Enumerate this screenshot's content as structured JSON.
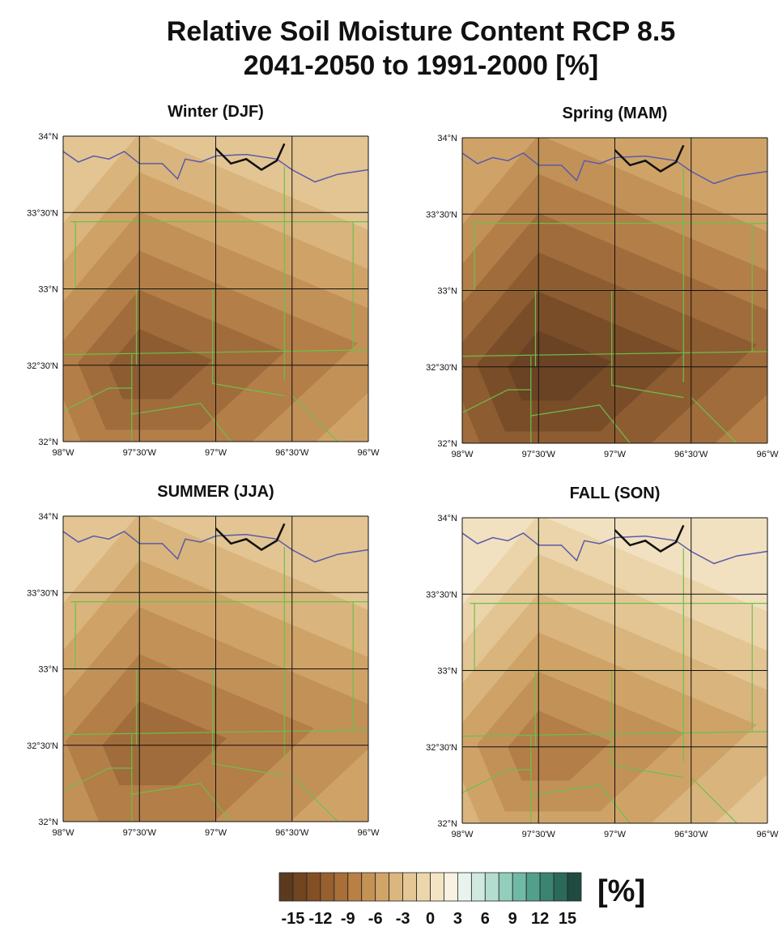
{
  "title_lines": [
    "Relative Soil Moisture Content RCP 8.5",
    "2041-2050 to 1991-2000 [%]"
  ],
  "panels": [
    {
      "title": "Winter (DJF)"
    },
    {
      "title": "Spring (MAM)"
    },
    {
      "title": "SUMMER (JJA)"
    },
    {
      "title": "FALL (SON)"
    }
  ],
  "lat_labels": [
    "34°N",
    "33°30'N",
    "33°N",
    "32°30'N",
    "32°N"
  ],
  "lon_labels": [
    "98°W",
    "97°30'W",
    "97°W",
    "96°30'W",
    "96°W"
  ],
  "colorbar": {
    "unit": "[%]",
    "lim": [
      -16.5,
      16.5
    ],
    "ticks": [
      -15,
      -12,
      -9,
      -6,
      -3,
      0,
      3,
      6,
      9,
      12,
      15
    ],
    "colors": [
      "#5c3a1e",
      "#70451f",
      "#834f24",
      "#96602f",
      "#a86f38",
      "#b88045",
      "#c59256",
      "#d1a468",
      "#dbb67e",
      "#e4c794",
      "#ecd6ab",
      "#f3e4c4",
      "#f9f2e2",
      "#e8f3ee",
      "#cfe9df",
      "#b3ddcf",
      "#93cdbb",
      "#70b9a5",
      "#529f8b",
      "#3c8472",
      "#2b6a5b",
      "#1f4b41"
    ]
  }
}
